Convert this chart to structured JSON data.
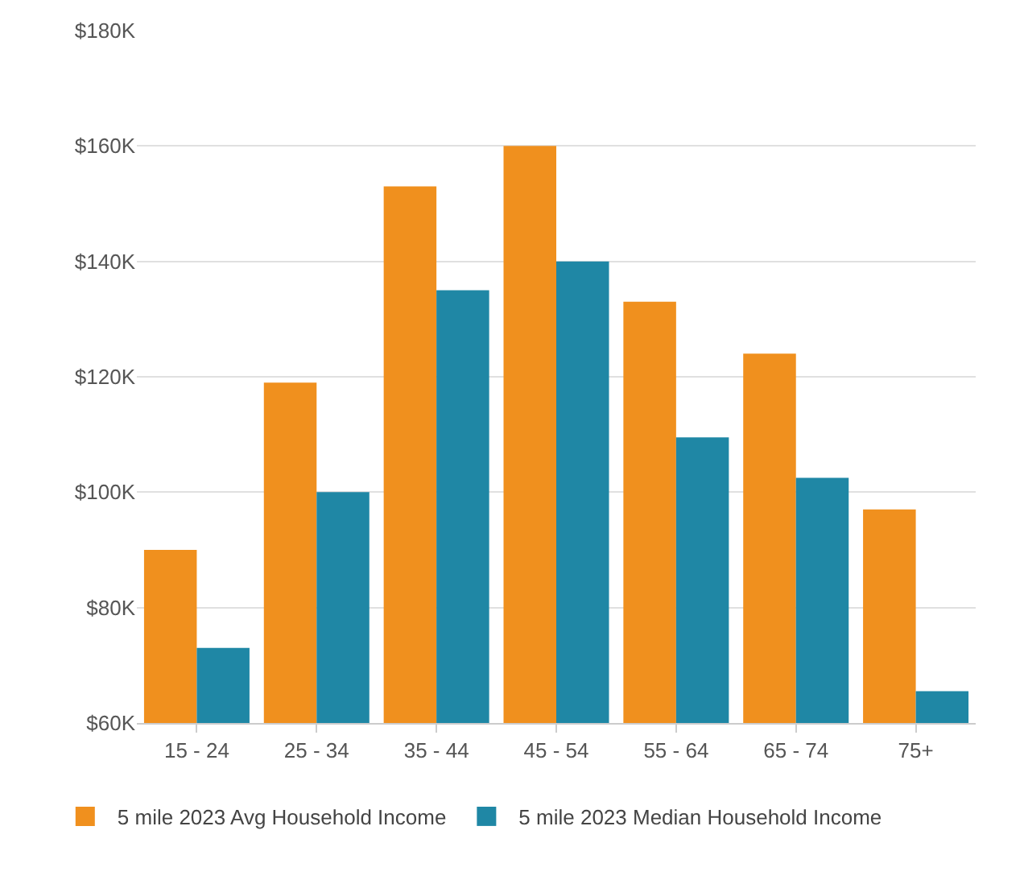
{
  "chart_data": {
    "type": "bar",
    "categories": [
      "15 - 24",
      "25 - 34",
      "35 - 44",
      "45 - 54",
      "55 - 64",
      "65 - 74",
      "75+"
    ],
    "series": [
      {
        "name": "5 mile 2023 Avg Household Income",
        "color": "#f0901e",
        "values": [
          90000,
          119000,
          153000,
          160000,
          133000,
          124000,
          97000
        ]
      },
      {
        "name": "5 mile 2023 Median Household Income",
        "color": "#1f87a5",
        "values": [
          73000,
          100000,
          135000,
          140000,
          109500,
          102500,
          65500
        ]
      }
    ],
    "ylim": [
      60000,
      180000
    ],
    "yticks": [
      {
        "value": 60000,
        "label": "$60K"
      },
      {
        "value": 80000,
        "label": "$80K"
      },
      {
        "value": 100000,
        "label": "$100K"
      },
      {
        "value": 120000,
        "label": "$120K"
      },
      {
        "value": 140000,
        "label": "$140K"
      },
      {
        "value": 160000,
        "label": "$160K"
      },
      {
        "value": 180000,
        "label": "$180K"
      }
    ],
    "grid": "y",
    "legend": "bottom"
  }
}
